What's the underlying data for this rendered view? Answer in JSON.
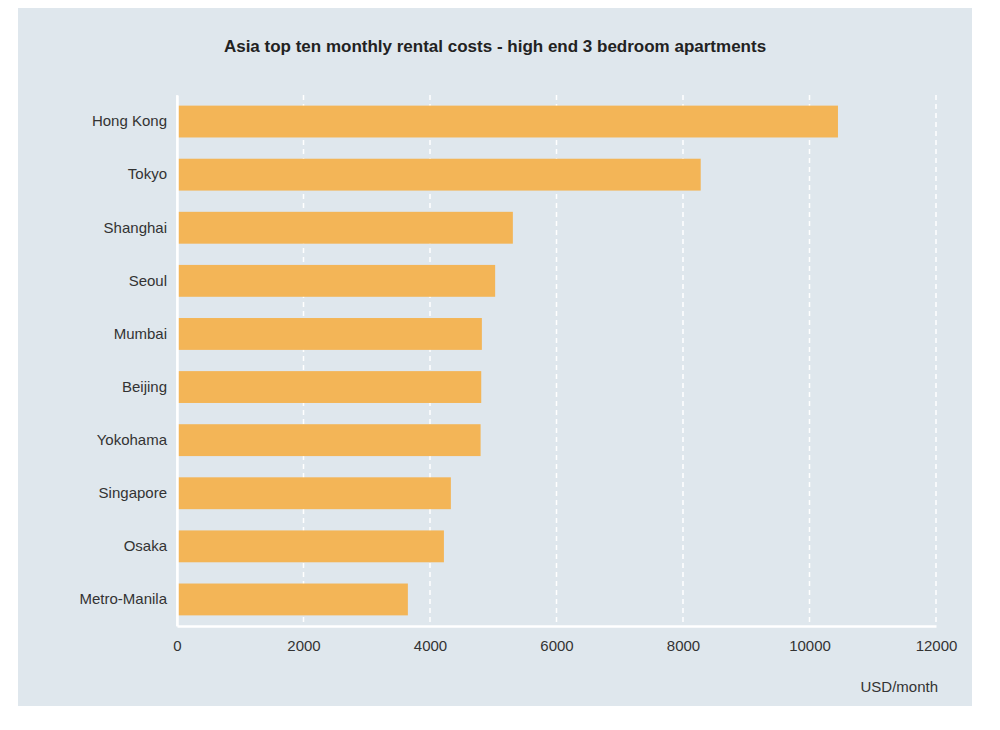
{
  "chart_data": {
    "type": "bar",
    "orientation": "horizontal",
    "title": "Asia top ten monthly rental costs - high end 3 bedroom apartments",
    "x_label": "USD/month",
    "categories": [
      "Hong Kong",
      "Tokyo",
      "Shanghai",
      "Seoul",
      "Mumbai",
      "Beijing",
      "Yokohama",
      "Singapore",
      "Osaka",
      "Metro-Manila"
    ],
    "values": [
      10450,
      8280,
      5310,
      5030,
      4820,
      4810,
      4800,
      4330,
      4220,
      3650
    ],
    "color": "#f3b557",
    "xlim": [
      0,
      12000
    ],
    "xticks": [
      0,
      2000,
      4000,
      6000,
      8000,
      10000,
      12000
    ],
    "grid": true
  }
}
